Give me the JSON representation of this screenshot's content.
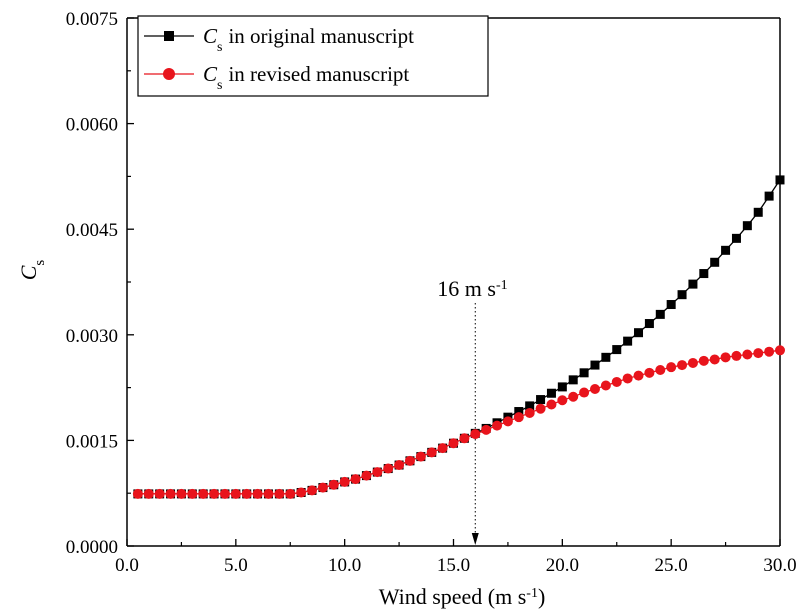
{
  "chart_data": {
    "type": "line",
    "xlabel": "Wind speed (m s",
    "xlabel_sup": "-1",
    "xlabel_close": ")",
    "ylabel": "C",
    "ylabel_sub": "s",
    "xlim": [
      0,
      30
    ],
    "ylim": [
      0,
      0.0075
    ],
    "xticks": [
      0,
      5,
      10,
      15,
      20,
      25,
      30
    ],
    "xtick_labels": [
      "0.0",
      "5.0",
      "10.0",
      "15.0",
      "20.0",
      "25.0",
      "30.0"
    ],
    "yticks": [
      0,
      0.0015,
      0.003,
      0.0045,
      0.006,
      0.0075
    ],
    "ytick_labels": [
      "0.0000",
      "0.0015",
      "0.0030",
      "0.0045",
      "0.0060",
      "0.0075"
    ],
    "grid": false,
    "legend_position": "top-left",
    "annotation": {
      "x": 16,
      "text": "16 m s",
      "text_sup": "-1"
    },
    "x": [
      0.5,
      1.0,
      1.5,
      2.0,
      2.5,
      3.0,
      3.5,
      4.0,
      4.5,
      5.0,
      5.5,
      6.0,
      6.5,
      7.0,
      7.5,
      8.0,
      8.5,
      9.0,
      9.5,
      10.0,
      10.5,
      11.0,
      11.5,
      12.0,
      12.5,
      13.0,
      13.5,
      14.0,
      14.5,
      15.0,
      15.5,
      16.0,
      16.5,
      17.0,
      17.5,
      18.0,
      18.5,
      19.0,
      19.5,
      20.0,
      20.5,
      21.0,
      21.5,
      22.0,
      22.5,
      23.0,
      23.5,
      24.0,
      24.5,
      25.0,
      25.5,
      26.0,
      26.5,
      27.0,
      27.5,
      28.0,
      28.5,
      29.0,
      29.5,
      30.0
    ],
    "series": [
      {
        "name": "in original manuscript",
        "name_prefix": "C",
        "name_sub": "s",
        "color": "#000000",
        "marker": "square",
        "values": [
          0.00074,
          0.00074,
          0.00074,
          0.00074,
          0.00074,
          0.00074,
          0.00074,
          0.00074,
          0.00074,
          0.00074,
          0.00074,
          0.00074,
          0.00074,
          0.00074,
          0.00074,
          0.00076,
          0.00079,
          0.00083,
          0.00087,
          0.00091,
          0.00095,
          0.001,
          0.00105,
          0.0011,
          0.00115,
          0.00121,
          0.00127,
          0.00133,
          0.00139,
          0.00146,
          0.00153,
          0.0016,
          0.00167,
          0.00175,
          0.00183,
          0.00191,
          0.00199,
          0.00208,
          0.00217,
          0.00226,
          0.00236,
          0.00246,
          0.00257,
          0.00268,
          0.00279,
          0.00291,
          0.00303,
          0.00316,
          0.00329,
          0.00343,
          0.00357,
          0.00372,
          0.00387,
          0.00403,
          0.0042,
          0.00437,
          0.00455,
          0.00474,
          0.00497,
          0.0052
        ]
      },
      {
        "name": "in revised manuscript",
        "name_prefix": "C",
        "name_sub": "s",
        "color": "#e8141c",
        "marker": "circle",
        "values": [
          0.00074,
          0.00074,
          0.00074,
          0.00074,
          0.00074,
          0.00074,
          0.00074,
          0.00074,
          0.00074,
          0.00074,
          0.00074,
          0.00074,
          0.00074,
          0.00074,
          0.00074,
          0.00076,
          0.00079,
          0.00083,
          0.00087,
          0.00091,
          0.00095,
          0.001,
          0.00105,
          0.0011,
          0.00115,
          0.00121,
          0.00127,
          0.00133,
          0.00139,
          0.00146,
          0.00153,
          0.00159,
          0.00165,
          0.00171,
          0.00177,
          0.00183,
          0.00189,
          0.00195,
          0.00201,
          0.00207,
          0.00212,
          0.00218,
          0.00223,
          0.00228,
          0.00233,
          0.00238,
          0.00242,
          0.00246,
          0.0025,
          0.00254,
          0.00257,
          0.0026,
          0.00263,
          0.00265,
          0.00268,
          0.0027,
          0.00272,
          0.00274,
          0.00276,
          0.00278
        ]
      }
    ]
  }
}
